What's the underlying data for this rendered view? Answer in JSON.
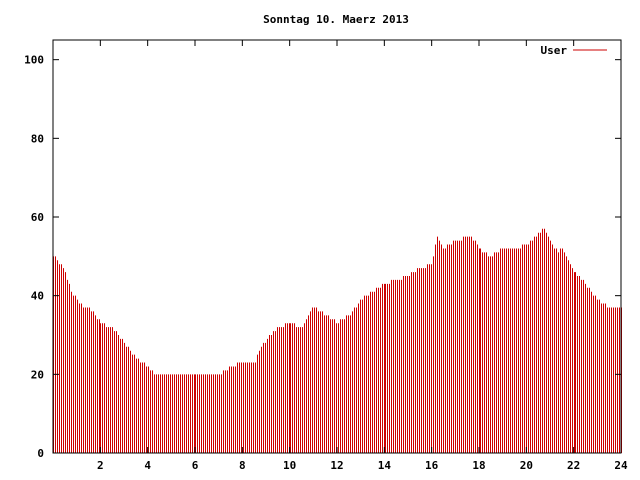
{
  "chart_data": {
    "type": "bar",
    "title": "Sonntag 10. Maerz 2013",
    "xlabel": "",
    "ylabel": "",
    "xlim": [
      0,
      24
    ],
    "ylim": [
      0,
      105
    ],
    "x_ticks": [
      "2",
      "4",
      "6",
      "8",
      "10",
      "12",
      "14",
      "16",
      "18",
      "20",
      "22",
      "24"
    ],
    "y_ticks": [
      "0",
      "20",
      "40",
      "60",
      "80",
      "100"
    ],
    "x_tick_values": [
      2,
      4,
      6,
      8,
      10,
      12,
      14,
      16,
      18,
      20,
      22,
      24
    ],
    "y_tick_values": [
      0,
      20,
      40,
      60,
      80,
      100
    ],
    "legend": {
      "position": "top-right",
      "entries": [
        {
          "label": "User",
          "color": "#cc0000"
        }
      ]
    },
    "bar_color": "#cc0000",
    "grid": false,
    "anchors": [
      [
        0.0,
        50
      ],
      [
        0.2,
        49
      ],
      [
        0.5,
        46
      ],
      [
        0.75,
        41
      ],
      [
        1.0,
        39
      ],
      [
        1.25,
        37
      ],
      [
        1.5,
        37
      ],
      [
        1.75,
        35
      ],
      [
        2.0,
        33
      ],
      [
        2.5,
        32
      ],
      [
        3.0,
        28
      ],
      [
        3.5,
        24
      ],
      [
        4.0,
        22
      ],
      [
        4.3,
        20
      ],
      [
        7.0,
        20
      ],
      [
        7.5,
        22
      ],
      [
        8.0,
        23
      ],
      [
        8.5,
        23
      ],
      [
        8.7,
        26
      ],
      [
        9.0,
        29
      ],
      [
        9.5,
        32
      ],
      [
        10.0,
        33
      ],
      [
        10.5,
        32
      ],
      [
        11.0,
        37
      ],
      [
        11.5,
        35
      ],
      [
        12.0,
        33
      ],
      [
        12.5,
        35
      ],
      [
        13.0,
        39
      ],
      [
        13.5,
        41
      ],
      [
        14.0,
        43
      ],
      [
        14.5,
        44
      ],
      [
        15.0,
        45
      ],
      [
        15.5,
        47
      ],
      [
        16.0,
        48
      ],
      [
        16.2,
        55
      ],
      [
        16.5,
        52
      ],
      [
        17.0,
        54
      ],
      [
        17.5,
        55
      ],
      [
        17.8,
        54
      ],
      [
        18.0,
        52
      ],
      [
        18.5,
        50
      ],
      [
        19.0,
        52
      ],
      [
        19.5,
        52
      ],
      [
        20.0,
        53
      ],
      [
        20.5,
        56
      ],
      [
        20.7,
        57
      ],
      [
        21.0,
        54
      ],
      [
        21.3,
        51
      ],
      [
        21.5,
        52
      ],
      [
        22.0,
        46
      ],
      [
        22.5,
        43
      ],
      [
        23.0,
        39
      ],
      [
        23.5,
        37
      ],
      [
        24.0,
        37
      ]
    ]
  }
}
